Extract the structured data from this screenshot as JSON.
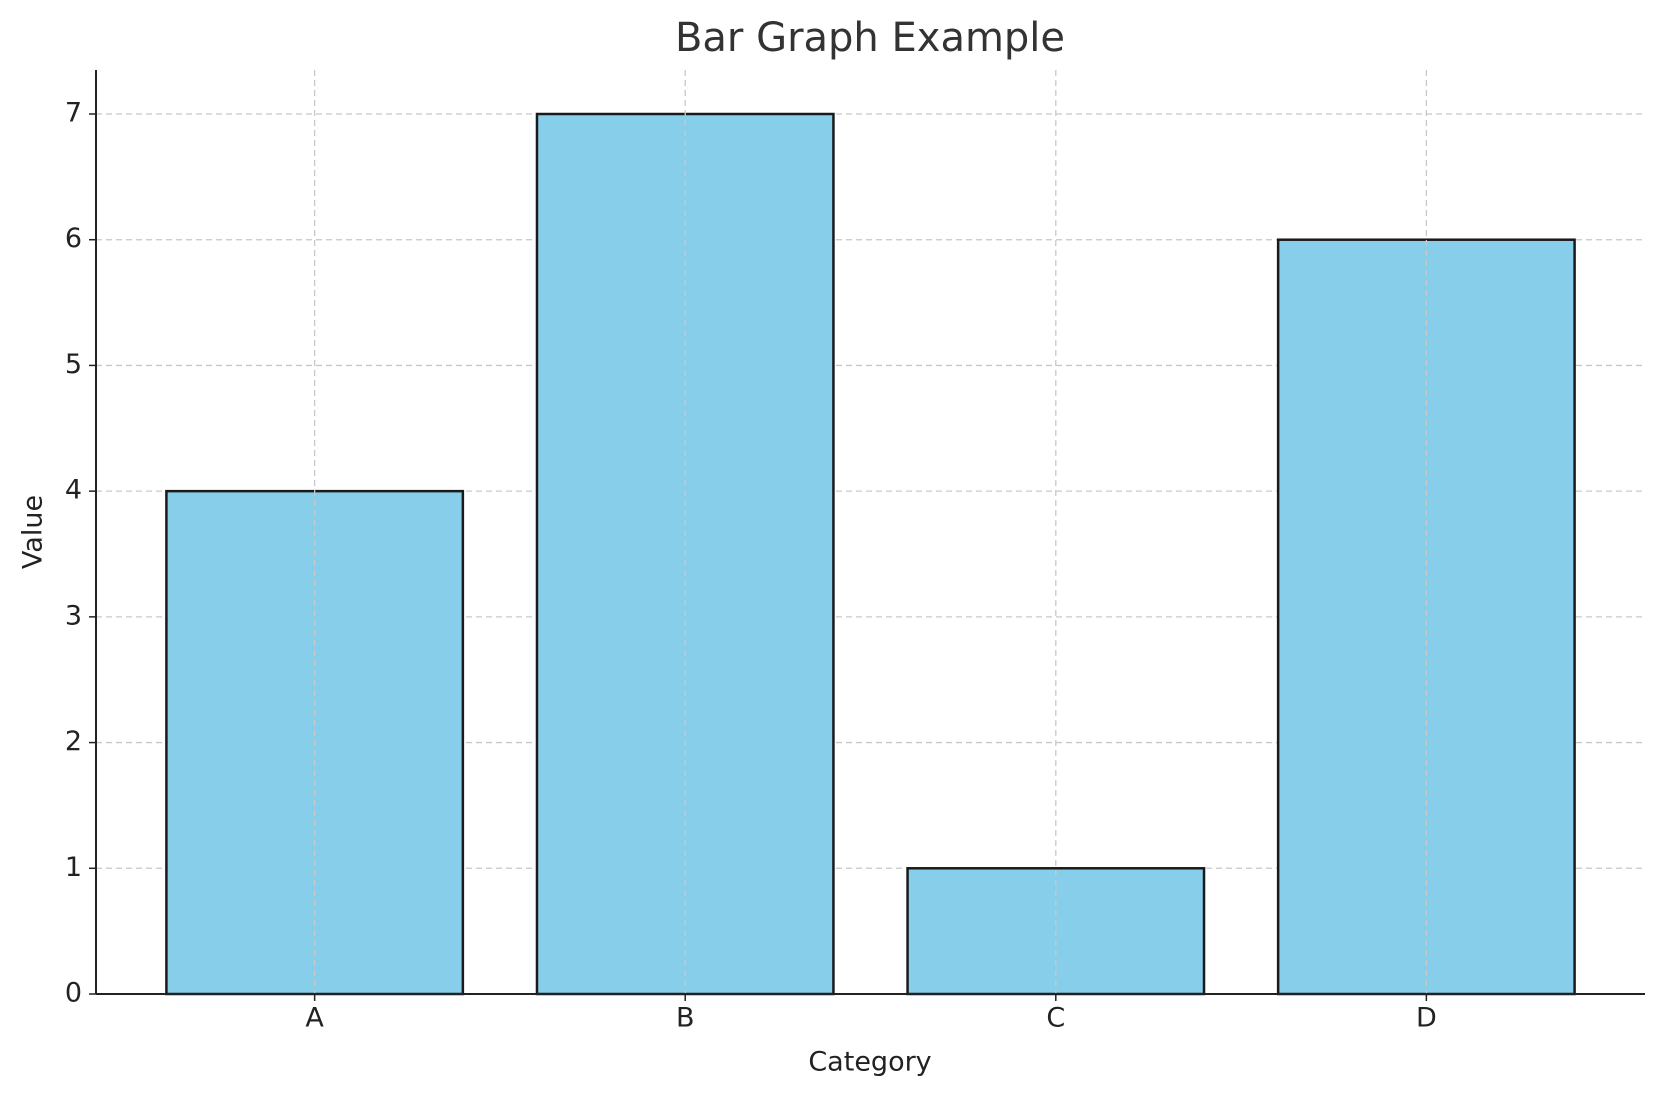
{
  "chart_data": {
    "type": "bar",
    "title": "Bar Graph Example",
    "x_label": "Category",
    "y_label": "Value",
    "categories": [
      "A",
      "B",
      "C",
      "D"
    ],
    "values": [
      4,
      7,
      1,
      6
    ],
    "color": "#87ceeb",
    "edgecolor": "#1a1a1a",
    "ylim": [
      0,
      7.35
    ],
    "yticks": [
      0,
      1,
      2,
      3,
      4,
      5,
      6,
      7
    ],
    "grid": true
  }
}
